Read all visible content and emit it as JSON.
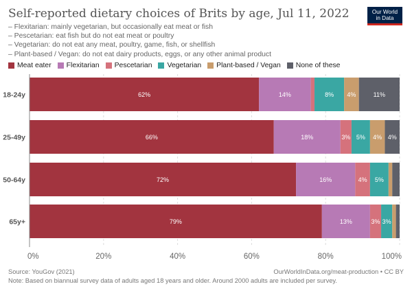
{
  "header": {
    "title": "Self-reported dietary choices of Brits by age, Jul 11, 2022",
    "subtitle_lines": [
      "– Flexitarian: mainly vegetarian, but occasionally eat meat or fish",
      "– Pescetarian: eat fish but do not eat meat or poultry",
      "– Vegetarian: do not eat any meat, poultry, game, fish, or shellfish",
      "– Plant-based / Vegan: do not eat dairy products, eggs, or any other animal product"
    ],
    "logo_line1": "Our World",
    "logo_line2": "in Data"
  },
  "chart_data": {
    "type": "bar",
    "orientation": "horizontal",
    "stacked": true,
    "categories": [
      "18-24y",
      "25-49y",
      "50-64y",
      "65y+"
    ],
    "series": [
      {
        "name": "Meat eater",
        "color": "#a2343f",
        "values": [
          62,
          66,
          72,
          79
        ]
      },
      {
        "name": "Flexitarian",
        "color": "#b77ab5",
        "values": [
          14,
          18,
          16,
          13
        ]
      },
      {
        "name": "Pescetarian",
        "color": "#d5727c",
        "values": [
          1,
          3,
          4,
          3
        ]
      },
      {
        "name": "Vegetarian",
        "color": "#3aa7a3",
        "values": [
          8,
          5,
          5,
          3
        ]
      },
      {
        "name": "Plant-based / Vegan",
        "color": "#c99d6d",
        "values": [
          4,
          4,
          1,
          1
        ]
      },
      {
        "name": "None of these",
        "color": "#5e6069",
        "values": [
          11,
          4,
          2,
          1
        ]
      }
    ],
    "data_labels": [
      [
        "62%",
        "14%",
        "",
        "8%",
        "4%",
        "11%"
      ],
      [
        "66%",
        "18%",
        "3%",
        "5%",
        "4%",
        "4%"
      ],
      [
        "72%",
        "16%",
        "4%",
        "5%",
        "",
        ""
      ],
      [
        "79%",
        "13%",
        "3%",
        "3%",
        "",
        ""
      ]
    ],
    "xlim": [
      0,
      100
    ],
    "x_ticks": [
      "0%",
      "20%",
      "40%",
      "60%",
      "80%",
      "100%"
    ],
    "grid": "vertical dashed",
    "legend_position": "top"
  },
  "footer": {
    "source": "Source: YouGov (2021)",
    "url": "OurWorldInData.org/meat-production • CC BY",
    "note": "Note: Based on biannual survey data of adults aged 18 years and older. Around 2000 adults are included per survey."
  }
}
